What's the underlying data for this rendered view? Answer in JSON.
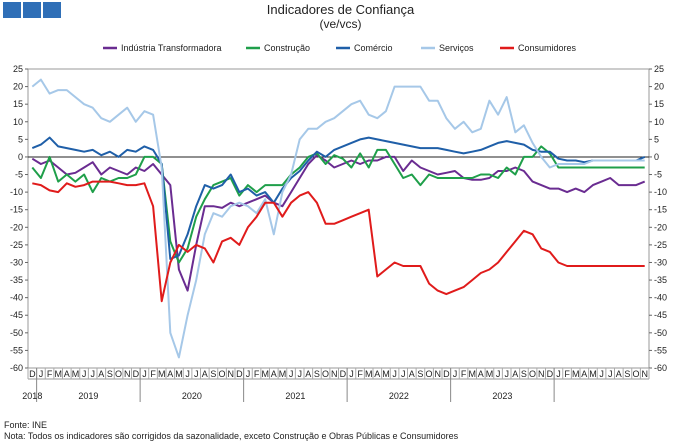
{
  "header": {
    "title": "Indicadores de Confiança",
    "subtitle": "(ve/vcs)"
  },
  "footer": {
    "source": "Fonte: INE",
    "note": "Nota: Todos os indicadores são corrigidos da sazonalidade, exceto Construção e Obras Públicas e Consumidores"
  },
  "chart_data": {
    "type": "line",
    "title": "Indicadores de Confiança",
    "subtitle": "(ve/vcs)",
    "ylim": [
      -60,
      25
    ],
    "yticks": [
      25,
      20,
      15,
      10,
      5,
      0,
      -5,
      -10,
      -15,
      -20,
      -25,
      -30,
      -35,
      -40,
      -45,
      -50,
      -55,
      -60
    ],
    "month_labels": [
      "D",
      "J",
      "F",
      "M",
      "A",
      "M",
      "J",
      "J",
      "A",
      "S",
      "O",
      "N",
      "D",
      "J",
      "F",
      "M",
      "A",
      "M",
      "J",
      "J",
      "A",
      "S",
      "O",
      "N",
      "D",
      "J",
      "F",
      "M",
      "A",
      "M",
      "J",
      "J",
      "A",
      "S",
      "O",
      "N",
      "D",
      "J",
      "F",
      "M",
      "A",
      "M",
      "J",
      "J",
      "A",
      "S",
      "O",
      "N",
      "D",
      "J",
      "F",
      "M",
      "A",
      "M",
      "J",
      "J",
      "A",
      "S",
      "O",
      "N",
      "D",
      "J",
      "F",
      "M",
      "A",
      "M",
      "J",
      "J",
      "A",
      "S",
      "O",
      "N"
    ],
    "year_labels": [
      {
        "label": "2018",
        "index": 0
      },
      {
        "label": "2019",
        "index": 6.5
      },
      {
        "label": "2020",
        "index": 18.5
      },
      {
        "label": "2021",
        "index": 30.5
      },
      {
        "label": "2022",
        "index": 42.5
      },
      {
        "label": "2023",
        "index": 54.5
      }
    ],
    "legend": [
      "Indústria Transformadora",
      "Construção",
      "Comércio",
      "Serviços",
      "Consumidores"
    ],
    "series": [
      {
        "name": "Indústria Transformadora",
        "color": "#6a2c91",
        "values": [
          -0.5,
          -2,
          -1,
          -3,
          -5,
          -4.5,
          -3,
          -1.5,
          -5,
          -3,
          -4,
          -5,
          -3,
          -4,
          -2,
          -5,
          -8,
          -32,
          -38,
          -25,
          -14,
          -14,
          -14.5,
          -13,
          -14,
          -13,
          -12,
          -11,
          -13,
          -14,
          -10,
          -6,
          -2,
          0.5,
          -1,
          -3,
          -2,
          -1,
          -2,
          -1,
          -1,
          0,
          0,
          -4,
          -1,
          -3,
          -4,
          -5,
          -4.5,
          -4,
          -6,
          -6.5,
          -6.5,
          -6,
          -4,
          -4,
          -3,
          -4,
          -7,
          -8,
          -9,
          -9,
          -10,
          -9,
          -10,
          -8,
          -7,
          -6,
          -8,
          -8,
          -8,
          -7
        ]
      },
      {
        "name": "Construção",
        "color": "#1f9f4a",
        "values": [
          -3,
          -6,
          0,
          -7,
          -5,
          -7,
          -5,
          -10,
          -6,
          -7,
          -6,
          -6,
          -5,
          0,
          0,
          -2,
          -24,
          -30,
          -26,
          -17,
          -12,
          -8,
          -7,
          -6,
          -11,
          -8,
          -10,
          -8,
          -8,
          -8,
          -5,
          -3,
          0,
          1,
          -2,
          0.5,
          -0.5,
          -3,
          1,
          -3,
          2,
          2,
          -2,
          -6,
          -5,
          -8,
          -5,
          -6,
          -6,
          -6,
          -6,
          -6,
          -5,
          -5,
          -6,
          -3,
          -5,
          0,
          0,
          3,
          1,
          -3,
          -3,
          -3,
          -3,
          -3,
          -3,
          -3,
          -3,
          -3,
          -3,
          -3
        ]
      },
      {
        "name": "Comércio",
        "color": "#1f5fa8",
        "values": [
          2.5,
          3.5,
          5.5,
          3,
          2.5,
          2,
          1.5,
          2,
          0.5,
          1.5,
          0,
          2,
          1.5,
          3,
          2,
          -2,
          -29,
          -28,
          -22,
          -14,
          -8,
          -9,
          -8,
          -5,
          -10,
          -9,
          -11,
          -10,
          -13,
          -9,
          -6,
          -4,
          -1,
          1.5,
          0,
          2,
          3,
          4,
          5,
          5.5,
          5,
          4.5,
          4,
          3.5,
          3,
          2.5,
          2.5,
          2.5,
          2,
          1.5,
          1,
          1.5,
          2,
          3,
          4,
          4.5,
          4,
          3.5,
          2,
          1.5,
          1.5,
          -0.5,
          -1,
          -1,
          -1.5,
          -1,
          -1,
          -1,
          -1,
          -1,
          -1,
          0
        ]
      },
      {
        "name": "Serviços",
        "color": "#a6c8e8",
        "values": [
          20,
          22,
          18,
          19,
          19,
          17,
          15,
          14,
          11,
          10,
          12,
          14,
          10,
          13,
          12,
          -3,
          -50,
          -57,
          -45,
          -35,
          -22,
          -16,
          -17,
          -14,
          -13,
          -14,
          -16,
          -12,
          -22,
          -10,
          -5,
          5,
          8,
          8,
          10,
          11,
          13,
          15,
          16,
          12,
          11,
          13,
          20,
          20,
          20,
          20,
          16,
          16,
          11,
          8,
          10,
          7,
          8,
          16,
          12,
          17,
          7,
          9,
          4,
          0,
          -3,
          -2,
          -2,
          -2,
          -2,
          -1,
          -1,
          -1,
          -1,
          -1,
          -1,
          -1
        ]
      },
      {
        "name": "Consumidores",
        "color": "#e01b1b",
        "values": [
          -7.5,
          -8,
          -9.5,
          -10,
          -7.5,
          -8.5,
          -8,
          -7,
          -7,
          -7,
          -7.5,
          -8,
          -8,
          -7.5,
          -14,
          -41,
          -30,
          -25,
          -27,
          -25,
          -26,
          -30,
          -24,
          -23,
          -25,
          -20,
          -17,
          -13,
          -13,
          -17,
          -13,
          -11,
          -10,
          -13,
          -19,
          -19,
          -18,
          -17,
          -16,
          -15,
          -34,
          -32,
          -30,
          -31,
          -31,
          -31,
          -36,
          -38,
          -39,
          -38,
          -37,
          -35,
          -33,
          -32,
          -30,
          -27,
          -24,
          -21,
          -22,
          -26,
          -27,
          -30,
          -31,
          -31,
          -31,
          -31,
          -31,
          -31,
          -31,
          -31,
          -31,
          -31
        ]
      }
    ]
  }
}
